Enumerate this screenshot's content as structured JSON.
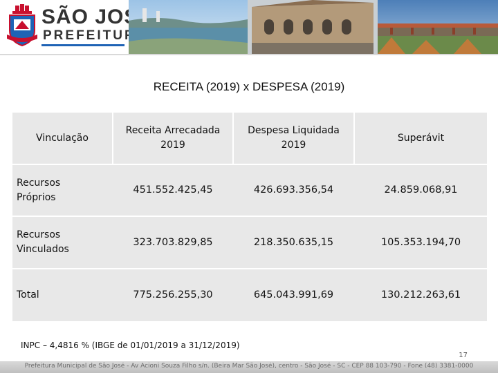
{
  "header": {
    "logo_title": "SÃO JOSÉ",
    "logo_subtitle": "PREFEITURA"
  },
  "slide": {
    "title": "RECEITA  (2019)  x  DESPESA (2019)"
  },
  "table": {
    "headers": {
      "vinculacao": "Vinculação",
      "receita_l1": "Receita Arrecadada",
      "receita_l2": "2019",
      "despesa_l1": "Despesa Liquidada",
      "despesa_l2": "2019",
      "superavit": "Superávit"
    },
    "rows": [
      {
        "label_l1": "Recursos",
        "label_l2": "Próprios",
        "receita": "451.552.425,45",
        "despesa": "426.693.356,54",
        "superavit": "24.859.068,91"
      },
      {
        "label_l1": "Recursos",
        "label_l2": "Vinculados",
        "receita": "323.703.829,85",
        "despesa": "218.350.635,15",
        "superavit": "105.353.194,70"
      },
      {
        "label_l1": "Total",
        "label_l2": "",
        "receita": "775.256.255,30",
        "despesa": "645.043.991,69",
        "superavit": "130.212.263,61"
      }
    ]
  },
  "footer": {
    "note": "INPC – 4,4816 % (IBGE de 01/01/2019  a  31/12/2019)",
    "page_number": "17",
    "address": "Prefeitura Municipal de São José - Av Acioni Souza Filho s/n. (Beira Mar São José), centro - São José - SC - CEP 88 103-790 - Fone (48) 3381-0000"
  },
  "colors": {
    "table_fill": "#e8e8e8",
    "logo_blue": "#1f63b5",
    "crest_red": "#c8102e"
  }
}
